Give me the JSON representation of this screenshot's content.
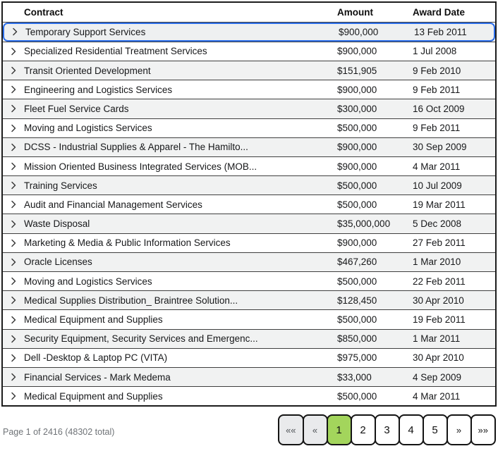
{
  "colors": {
    "selected_row_ring": "#2b6de8",
    "active_page_bg": "#a3d55c",
    "row_alt_bg": "#f1f2f2",
    "separator": "#3f3f3f"
  },
  "icons": {
    "row_expander": "chevron-right-icon"
  },
  "table": {
    "columns": [
      {
        "key": "contract",
        "label": "Contract"
      },
      {
        "key": "amount",
        "label": "Amount"
      },
      {
        "key": "award_date",
        "label": "Award Date"
      }
    ],
    "rows": [
      {
        "contract": "Temporary Support Services",
        "amount": "$900,000",
        "award_date": "13 Feb 2011",
        "selected": true
      },
      {
        "contract": "Specialized Residential Treatment Services",
        "amount": "$900,000",
        "award_date": "1 Jul 2008",
        "selected": false
      },
      {
        "contract": "Transit Oriented Development",
        "amount": "$151,905",
        "award_date": "9 Feb 2010",
        "selected": false
      },
      {
        "contract": "Engineering and Logistics Services",
        "amount": "$900,000",
        "award_date": "9 Feb 2011",
        "selected": false
      },
      {
        "contract": "Fleet Fuel Service Cards",
        "amount": "$300,000",
        "award_date": "16 Oct 2009",
        "selected": false
      },
      {
        "contract": "Moving and Logistics Services",
        "amount": "$500,000",
        "award_date": "9 Feb 2011",
        "selected": false
      },
      {
        "contract": "DCSS - Industrial Supplies & Apparel - The Hamilto...",
        "amount": "$900,000",
        "award_date": "30 Sep 2009",
        "selected": false
      },
      {
        "contract": "Mission Oriented Business Integrated Services (MOB...",
        "amount": "$900,000",
        "award_date": "4 Mar 2011",
        "selected": false
      },
      {
        "contract": "Training Services",
        "amount": "$500,000",
        "award_date": "10 Jul 2009",
        "selected": false
      },
      {
        "contract": "Audit and Financial Management Services",
        "amount": "$500,000",
        "award_date": "19 Mar 2011",
        "selected": false
      },
      {
        "contract": "Waste Disposal",
        "amount": "$35,000,000",
        "award_date": "5 Dec 2008",
        "selected": false
      },
      {
        "contract": "Marketing & Media & Public Information Services",
        "amount": "$900,000",
        "award_date": "27 Feb 2011",
        "selected": false
      },
      {
        "contract": "Oracle Licenses",
        "amount": "$467,260",
        "award_date": "1 Mar 2010",
        "selected": false
      },
      {
        "contract": "Moving and Logistics Services",
        "amount": "$500,000",
        "award_date": "22 Feb 2011",
        "selected": false
      },
      {
        "contract": "Medical Supplies Distribution_ Braintree Solution...",
        "amount": "$128,450",
        "award_date": "30 Apr 2010",
        "selected": false
      },
      {
        "contract": "Medical Equipment and Supplies",
        "amount": "$500,000",
        "award_date": "19 Feb 2011",
        "selected": false
      },
      {
        "contract": "Security Equipment, Security Services and Emergenc...",
        "amount": "$850,000",
        "award_date": "1 Mar 2011",
        "selected": false
      },
      {
        "contract": "Dell -Desktop & Laptop PC (VITA)",
        "amount": "$975,000",
        "award_date": "30 Apr 2010",
        "selected": false
      },
      {
        "contract": "Financial Services - Mark Medema",
        "amount": "$33,000",
        "award_date": "4 Sep 2009",
        "selected": false
      },
      {
        "contract": "Medical Equipment and Supplies",
        "amount": "$500,000",
        "award_date": "4 Mar 2011",
        "selected": false
      }
    ]
  },
  "pagination": {
    "summary": "Page 1 of 2416 (48302 total)",
    "buttons": [
      {
        "label": "««",
        "name": "pagination-first-page-button",
        "state": "disabled",
        "arrow": true
      },
      {
        "label": "«",
        "name": "pagination-prev-page-button",
        "state": "disabled",
        "arrow": true
      },
      {
        "label": "1",
        "name": "pagination-page-1-button",
        "state": "active",
        "arrow": false
      },
      {
        "label": "2",
        "name": "pagination-page-2-button",
        "state": "normal",
        "arrow": false
      },
      {
        "label": "3",
        "name": "pagination-page-3-button",
        "state": "normal",
        "arrow": false
      },
      {
        "label": "4",
        "name": "pagination-page-4-button",
        "state": "normal",
        "arrow": false
      },
      {
        "label": "5",
        "name": "pagination-page-5-button",
        "state": "normal",
        "arrow": false
      },
      {
        "label": "»",
        "name": "pagination-next-page-button",
        "state": "normal",
        "arrow": true
      },
      {
        "label": "»»",
        "name": "pagination-last-page-button",
        "state": "normal",
        "arrow": true
      }
    ]
  }
}
